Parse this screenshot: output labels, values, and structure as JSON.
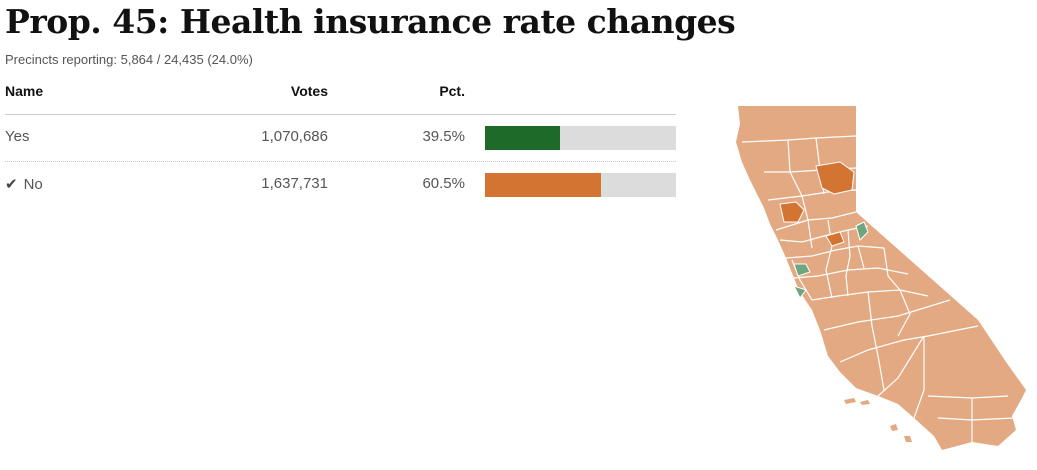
{
  "header": {
    "title": "Prop. 45: Health insurance rate changes",
    "precincts": "Precincts reporting: 5,864 / 24,435 (24.0%)"
  },
  "table": {
    "columns": {
      "name": "Name",
      "votes": "Votes",
      "pct": "Pct."
    },
    "rows": [
      {
        "name": "Yes",
        "votes": "1,070,686",
        "pct": "39.5%",
        "share": 0.395,
        "color": "#1d6a29",
        "winner": false
      },
      {
        "name": "No",
        "votes": "1,637,731",
        "pct": "60.5%",
        "share": 0.605,
        "color": "#d37432",
        "winner": true
      }
    ]
  },
  "map": {
    "base_color": "#e3a982",
    "strong_no_color": "#d37432",
    "yes_color": "#6fa57f",
    "border_color": "#ffffff"
  },
  "chart_data": {
    "type": "bar",
    "categories": [
      "Yes",
      "No"
    ],
    "values": [
      39.5,
      60.5
    ],
    "vote_counts": [
      1070686,
      1637731
    ],
    "title": "Prop. 45: Health insurance rate changes",
    "xlabel": "",
    "ylabel": "",
    "ylim": [
      0,
      100
    ]
  }
}
